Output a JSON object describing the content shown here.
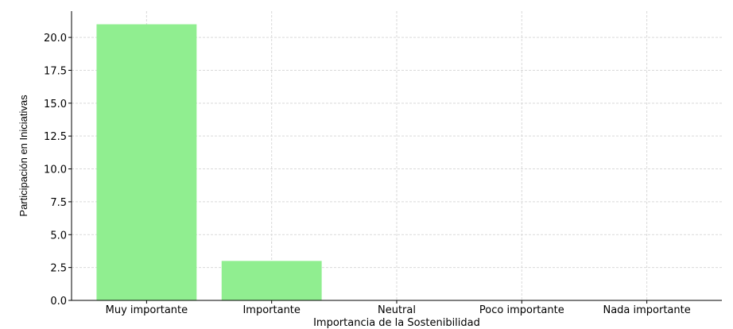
{
  "chart_data": {
    "type": "bar",
    "categories": [
      "Muy importante",
      "Importante",
      "Neutral",
      "Poco importante",
      "Nada importante"
    ],
    "values": [
      21,
      3,
      0,
      0,
      0
    ],
    "title": "",
    "xlabel": "Importancia de la Sostenibilidad",
    "ylabel": "Participación en Iniciativas",
    "ylim": [
      0,
      22
    ],
    "yticks": [
      "0.0",
      "2.5",
      "5.0",
      "7.5",
      "10.0",
      "12.5",
      "15.0",
      "17.5",
      "20.0"
    ],
    "grid": true,
    "bar_color": "#90ee90"
  }
}
